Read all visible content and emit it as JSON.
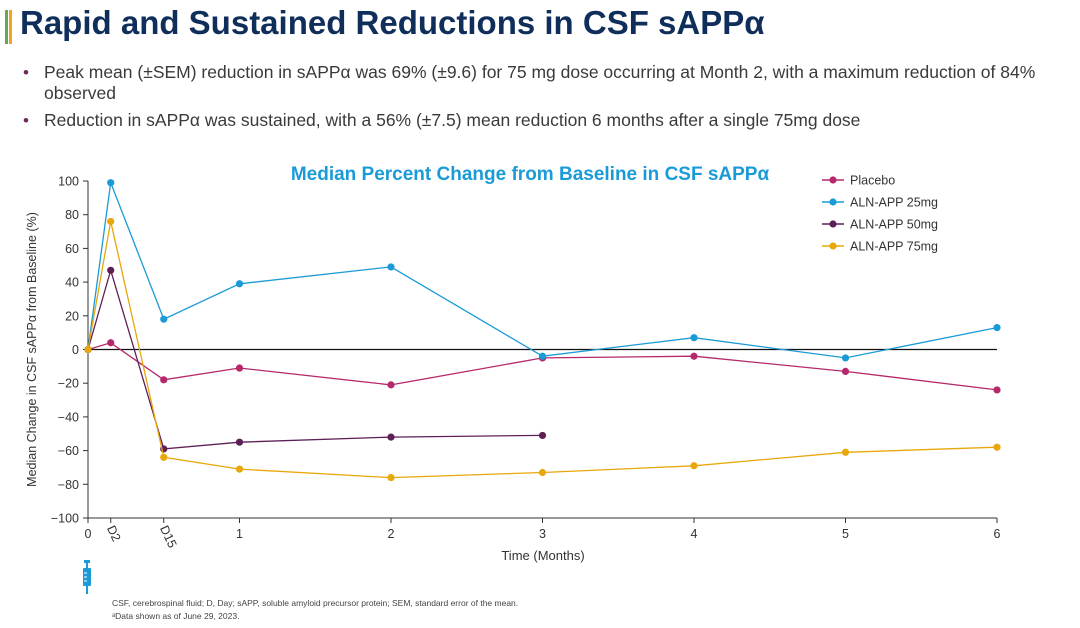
{
  "slide": {
    "title": "Rapid and Sustained Reductions in CSF sAPPα",
    "bullets": [
      "Peak mean (±SEM) reduction in sAPPα was 69% (±9.6) for 75 mg dose occurring at Month 2, with a maximum reduction of 84% observed",
      "Reduction in sAPPα was sustained, with a 56% (±7.5) mean reduction 6 months after a single 75mg dose"
    ],
    "footnotes": [
      "CSF, cerebrospinal fluid; D, Day; sAPP, soluble amyloid precursor protein; SEM, standard error of the mean.",
      "ᵃData shown as of June 29, 2023."
    ],
    "accent_colors": [
      "#6aa84f",
      "#f1a51c",
      "#1e8fc8"
    ]
  },
  "chart_data": {
    "type": "line",
    "title": "Median Percent Change from Baseline in CSF sAPPα",
    "xlabel": "Time (Months)",
    "ylabel": "Median Change in CSF sAPPα from Baseline (%)",
    "ylim": [
      -100,
      100
    ],
    "yticks": [
      -100,
      -80,
      -60,
      -40,
      -20,
      0,
      20,
      40,
      60,
      80,
      100
    ],
    "xlim": [
      0,
      6
    ],
    "xticks": [
      {
        "x": 0,
        "label": "0",
        "rotated": false
      },
      {
        "x": 0.15,
        "label": "D2",
        "rotated": true
      },
      {
        "x": 0.5,
        "label": "D15",
        "rotated": true
      },
      {
        "x": 1,
        "label": "1",
        "rotated": false
      },
      {
        "x": 2,
        "label": "2",
        "rotated": false
      },
      {
        "x": 3,
        "label": "3",
        "rotated": false
      },
      {
        "x": 4,
        "label": "4",
        "rotated": false
      },
      {
        "x": 5,
        "label": "5",
        "rotated": false
      },
      {
        "x": 6,
        "label": "6",
        "rotated": false
      }
    ],
    "legend_position": "top-right",
    "grid": false,
    "zero_line": true,
    "series": [
      {
        "name": "Placebo",
        "color": "#b5286b",
        "x": [
          0,
          0.15,
          0.5,
          1,
          2,
          3,
          4,
          5,
          6
        ],
        "y": [
          0,
          4,
          -18,
          -11,
          -21,
          -5,
          -4,
          -13,
          -24
        ]
      },
      {
        "name": "ALN-APP 25mg",
        "color": "#1a9bd7",
        "x": [
          0,
          0.15,
          0.5,
          1,
          2,
          3,
          4,
          5,
          6
        ],
        "y": [
          0,
          99,
          18,
          39,
          49,
          -4,
          7,
          -5,
          13
        ]
      },
      {
        "name": "ALN-APP 50mg",
        "color": "#5e1f57",
        "x": [
          0,
          0.15,
          0.5,
          1,
          2,
          3
        ],
        "y": [
          0,
          47,
          -59,
          -55,
          -52,
          -51
        ]
      },
      {
        "name": "ALN-APP 75mg",
        "color": "#e8a70a",
        "x": [
          0,
          0.15,
          0.5,
          1,
          2,
          3,
          4,
          5,
          6
        ],
        "y": [
          0,
          76,
          -64,
          -71,
          -76,
          -73,
          -69,
          -61,
          -58
        ]
      }
    ]
  }
}
